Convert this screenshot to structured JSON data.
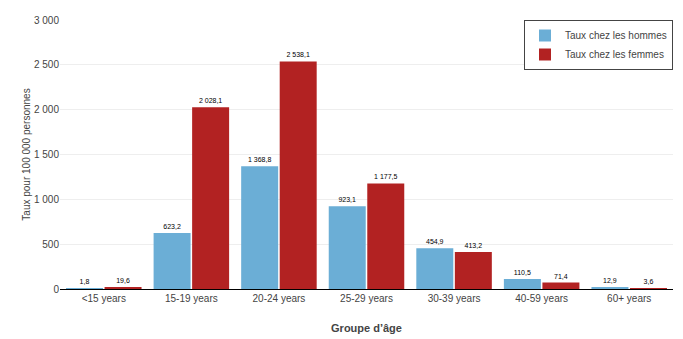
{
  "chart_data": {
    "type": "bar",
    "categories": [
      "<15 years",
      "15-19 years",
      "20-24 years",
      "25-29 years",
      "30-39 years",
      "40-59 years",
      "60+ years"
    ],
    "series": [
      {
        "name": "Taux chez les hommes",
        "color": "#6baed6",
        "values": [
          1.8,
          623.2,
          1368.8,
          923.1,
          454.9,
          110.5,
          12.9
        ],
        "value_labels": [
          "1,8",
          "623,2",
          "1 368,8",
          "923,1",
          "454,9",
          "110,5",
          "12,9"
        ]
      },
      {
        "name": "Taux chez les femmes",
        "color": "#b22222",
        "values": [
          19.6,
          2028.1,
          2538.1,
          1177.5,
          413.2,
          71.4,
          3.6
        ],
        "value_labels": [
          "19,6",
          "2 028,1",
          "2 538,1",
          "1 177,5",
          "413,2",
          "71,4",
          "3,6"
        ]
      }
    ],
    "xlabel": "Groupe d’âge",
    "ylabel": "Taux pour 100 000 personnes",
    "ylim": [
      0,
      3000
    ],
    "yticks": [
      0,
      500,
      {
        "value": 1000,
        "label": "1 000"
      },
      {
        "value": 1500,
        "label": "1 500"
      },
      {
        "value": 2000,
        "label": "2 000"
      },
      {
        "value": 2500,
        "label": "2 500"
      },
      {
        "value": 3000,
        "label": "3 000"
      }
    ],
    "grid": true,
    "legend": "upper right",
    "data_labels": true
  }
}
